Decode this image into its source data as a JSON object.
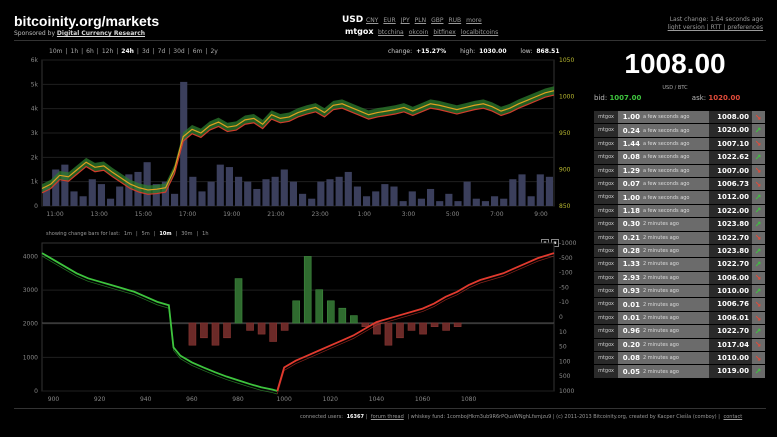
{
  "header": {
    "brand": "bitcoinity.org/markets",
    "sponsor_prefix": "Sponsored by",
    "sponsor_name": "Digital Currency Research",
    "currency": "USD",
    "currency_links": [
      "CNY",
      "EUR",
      "JPY",
      "PLN",
      "GBP",
      "RUB",
      "more"
    ],
    "exchange": "mtgox",
    "exchange_links": [
      "btcchina",
      "okcoin",
      "bitfinex",
      "localbitcoins"
    ],
    "last_change": "Last change: 1.64 seconds ago",
    "last_links": "light version | RTT | preferences"
  },
  "controls": {
    "ranges": [
      "10m",
      "1h",
      "6h",
      "12h",
      "24h",
      "3d",
      "7d",
      "30d",
      "6m",
      "2y"
    ],
    "selected_range": "24h",
    "change_label": "change:",
    "change_value": "+15.27%",
    "high_label": "high:",
    "high_value": "1030.00",
    "low_label": "low:",
    "low_value": "868.51",
    "bars_label": "showing change bars for last:",
    "bars_options": [
      "1m",
      "5m",
      "10m",
      "30m",
      "1h"
    ],
    "bars_selected": "10m"
  },
  "ticker": {
    "price": "1008.00",
    "pair": "USD / BTC",
    "bid_label": "bid:",
    "bid": "1007.00",
    "ask_label": "ask:",
    "ask": "1020.00"
  },
  "trades": [
    {
      "ex": "mtgox",
      "amount": "1.00",
      "ago": "a few seconds ago",
      "price": "1008.00",
      "dir": "down"
    },
    {
      "ex": "mtgox",
      "amount": "0.24",
      "ago": "a few seconds ago",
      "price": "1020.00",
      "dir": "up"
    },
    {
      "ex": "mtgox",
      "amount": "1.44",
      "ago": "a few seconds ago",
      "price": "1007.10",
      "dir": "down"
    },
    {
      "ex": "mtgox",
      "amount": "0.08",
      "ago": "a few seconds ago",
      "price": "1022.62",
      "dir": "up"
    },
    {
      "ex": "mtgox",
      "amount": "1.29",
      "ago": "a few seconds ago",
      "price": "1007.00",
      "dir": "down"
    },
    {
      "ex": "mtgox",
      "amount": "0.07",
      "ago": "a few seconds ago",
      "price": "1006.73",
      "dir": "down"
    },
    {
      "ex": "mtgox",
      "amount": "1.00",
      "ago": "a few seconds ago",
      "price": "1012.00",
      "dir": "up"
    },
    {
      "ex": "mtgox",
      "amount": "1.18",
      "ago": "a few seconds ago",
      "price": "1022.00",
      "dir": "up"
    },
    {
      "ex": "mtgox",
      "amount": "0.30",
      "ago": "2 minutes ago",
      "price": "1023.80",
      "dir": "up"
    },
    {
      "ex": "mtgox",
      "amount": "0.21",
      "ago": "2 minutes ago",
      "price": "1022.70",
      "dir": "down"
    },
    {
      "ex": "mtgox",
      "amount": "0.28",
      "ago": "2 minutes ago",
      "price": "1023.80",
      "dir": "up"
    },
    {
      "ex": "mtgox",
      "amount": "1.33",
      "ago": "2 minutes ago",
      "price": "1022.70",
      "dir": "up"
    },
    {
      "ex": "mtgox",
      "amount": "2.93",
      "ago": "2 minutes ago",
      "price": "1006.00",
      "dir": "down"
    },
    {
      "ex": "mtgox",
      "amount": "0.93",
      "ago": "2 minutes ago",
      "price": "1010.00",
      "dir": "up"
    },
    {
      "ex": "mtgox",
      "amount": "0.01",
      "ago": "2 minutes ago",
      "price": "1006.76",
      "dir": "down"
    },
    {
      "ex": "mtgox",
      "amount": "0.01",
      "ago": "2 minutes ago",
      "price": "1006.01",
      "dir": "down"
    },
    {
      "ex": "mtgox",
      "amount": "0.96",
      "ago": "2 minutes ago",
      "price": "1022.70",
      "dir": "up"
    },
    {
      "ex": "mtgox",
      "amount": "0.20",
      "ago": "2 minutes ago",
      "price": "1017.04",
      "dir": "down"
    },
    {
      "ex": "mtgox",
      "amount": "0.08",
      "ago": "2 minutes ago",
      "price": "1010.00",
      "dir": "down"
    },
    {
      "ex": "mtgox",
      "amount": "0.05",
      "ago": "2 minutes ago",
      "price": "1019.00",
      "dir": "up"
    }
  ],
  "footer": {
    "users_label": "connected users:",
    "users": "16367",
    "forum": "forum thread",
    "donation": "| whiskey fund: 1combojHkm3ub9R6rPQusWNghLfsmjzu9 | (c) 2011-2013 Bitcoinity.org, created by Kacper Cieśla (comboy) |",
    "contact": "contact"
  },
  "colors": {
    "up": "#3ec43e",
    "down": "#e04b3a",
    "bar": "#3b3f5c"
  },
  "chart_data": [
    {
      "type": "line",
      "x_tick_labels": [
        "11:00",
        "13:00",
        "15:00",
        "17:00",
        "19:00",
        "21:00",
        "23:00",
        "1:00",
        "3:00",
        "5:00",
        "7:00",
        "9:00"
      ],
      "y_left_ticks": [
        "0",
        "1k",
        "2k",
        "3k",
        "4k",
        "5k",
        "6k"
      ],
      "y_right_ticks": [
        "850",
        "900",
        "950",
        "1000",
        "1050"
      ],
      "ylim_volume": [
        0,
        6000
      ],
      "ylim_price": [
        850,
        1050
      ],
      "volume": [
        800,
        1500,
        1700,
        600,
        400,
        1100,
        900,
        300,
        800,
        1300,
        1400,
        1800,
        900,
        1000,
        500,
        5100,
        1200,
        600,
        1000,
        1700,
        1600,
        1200,
        1000,
        700,
        1100,
        1200,
        1500,
        1000,
        500,
        300,
        1000,
        1100,
        1200,
        1400,
        800,
        400,
        600,
        900,
        800,
        200,
        600,
        300,
        700,
        200,
        500,
        200,
        1000,
        300,
        200,
        400,
        300,
        1100,
        1300,
        400,
        1300,
        1200
      ],
      "series": [
        {
          "name": "price",
          "values": [
            874,
            880,
            892,
            890,
            900,
            910,
            903,
            905,
            896,
            888,
            880,
            875,
            872,
            873,
            875,
            900,
            945,
            955,
            950,
            960,
            965,
            958,
            960,
            968,
            970,
            962,
            975,
            970,
            972,
            978,
            982,
            985,
            978,
            988,
            990,
            985,
            980,
            975,
            978,
            980,
            982,
            985,
            980,
            985,
            990,
            988,
            985,
            982,
            985,
            988,
            990,
            986,
            980,
            984,
            990,
            995,
            1000,
            1005,
            1008
          ]
        },
        {
          "name": "low",
          "values": [
            868,
            874,
            886,
            884,
            894,
            904,
            897,
            899,
            890,
            882,
            874,
            869,
            866,
            867,
            869,
            894,
            939,
            949,
            944,
            954,
            959,
            952,
            954,
            962,
            964,
            956,
            969,
            964,
            966,
            972,
            976,
            979,
            972,
            982,
            984,
            979,
            974,
            969,
            972,
            974,
            976,
            979,
            974,
            979,
            984,
            982,
            979,
            976,
            979,
            982,
            984,
            980,
            974,
            978,
            984,
            989,
            994,
            999,
            1002
          ]
        },
        {
          "name": "high",
          "values": [
            880,
            886,
            898,
            896,
            906,
            916,
            909,
            911,
            902,
            894,
            886,
            881,
            878,
            879,
            881,
            906,
            951,
            961,
            956,
            966,
            971,
            964,
            966,
            974,
            976,
            968,
            981,
            976,
            978,
            984,
            988,
            991,
            984,
            994,
            996,
            991,
            986,
            981,
            984,
            986,
            988,
            991,
            986,
            991,
            996,
            994,
            991,
            988,
            991,
            994,
            996,
            992,
            986,
            990,
            996,
            1001,
            1006,
            1011,
            1014
          ]
        }
      ]
    },
    {
      "type": "area",
      "x_tick_labels": [
        "900",
        "920",
        "940",
        "960",
        "980",
        "1000",
        "1020",
        "1040",
        "1060",
        "1080"
      ],
      "xlim": [
        895,
        1117
      ],
      "y_left_ticks": [
        "0",
        "1000",
        "2000",
        "3000",
        "4000"
      ],
      "y_right_ticks": [
        "-1000",
        "-500",
        "-100",
        "-50",
        "-10",
        "0",
        "10",
        "50",
        "100",
        "500",
        "1000"
      ],
      "ylim": [
        0,
        4400
      ],
      "series": [
        {
          "name": "bids",
          "x": [
            895,
            900,
            905,
            910,
            915,
            920,
            925,
            930,
            935,
            940,
            945,
            950,
            952,
            955,
            960,
            965,
            970,
            975,
            980,
            985,
            990,
            995,
            997
          ],
          "y": [
            4100,
            3900,
            3700,
            3500,
            3350,
            3250,
            3150,
            3050,
            2950,
            2800,
            2650,
            2550,
            1300,
            1050,
            850,
            700,
            560,
            430,
            320,
            210,
            110,
            40,
            0
          ]
        },
        {
          "name": "asks",
          "x": [
            997,
            1000,
            1005,
            1010,
            1015,
            1020,
            1025,
            1030,
            1035,
            1040,
            1045,
            1050,
            1055,
            1060,
            1065,
            1070,
            1075,
            1080,
            1085,
            1090,
            1095,
            1100,
            1105,
            1110,
            1117
          ],
          "y": [
            0,
            700,
            900,
            1050,
            1200,
            1350,
            1500,
            1650,
            1850,
            2050,
            2150,
            2250,
            2350,
            2450,
            2600,
            2800,
            2950,
            3150,
            3300,
            3400,
            3500,
            3650,
            3800,
            3950,
            4100
          ]
        }
      ],
      "change_bars": {
        "x": [
          960,
          965,
          970,
          975,
          980,
          985,
          990,
          995,
          1000,
          1005,
          1010,
          1015,
          1020,
          1025,
          1030,
          1035,
          1040,
          1045,
          1050,
          1055,
          1060,
          1065,
          1070,
          1075
        ],
        "values": [
          -60,
          -40,
          -60,
          -40,
          120,
          -20,
          -30,
          -50,
          -20,
          60,
          180,
          90,
          60,
          40,
          20,
          -10,
          -30,
          -60,
          -40,
          -20,
          -30,
          -10,
          -20,
          -10
        ]
      }
    }
  ]
}
